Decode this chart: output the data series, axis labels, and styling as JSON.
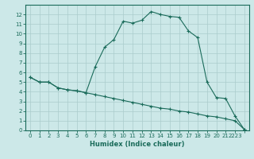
{
  "title": "",
  "xlabel": "Humidex (Indice chaleur)",
  "ylabel": "",
  "background_color": "#cce8e8",
  "line_color": "#1a6b5a",
  "xlim": [
    -0.5,
    23.5
  ],
  "ylim": [
    0,
    13
  ],
  "series1_x": [
    0,
    1,
    2,
    3,
    4,
    5,
    6,
    7,
    8,
    9,
    10,
    11,
    12,
    13,
    14,
    15,
    16,
    17,
    18,
    19,
    20,
    21,
    22,
    23
  ],
  "series1_y": [
    5.5,
    5.0,
    5.0,
    4.4,
    4.2,
    4.1,
    3.9,
    6.6,
    8.6,
    9.4,
    11.3,
    11.1,
    11.4,
    12.3,
    12.0,
    11.8,
    11.7,
    10.3,
    9.6,
    5.0,
    3.4,
    3.3,
    1.5,
    0.1
  ],
  "series2_x": [
    0,
    1,
    2,
    3,
    4,
    5,
    6,
    7,
    8,
    9,
    10,
    11,
    12,
    13,
    14,
    15,
    16,
    17,
    18,
    19,
    20,
    21,
    22,
    23
  ],
  "series2_y": [
    5.5,
    5.0,
    5.0,
    4.4,
    4.2,
    4.1,
    3.9,
    3.7,
    3.5,
    3.3,
    3.1,
    2.9,
    2.7,
    2.5,
    2.3,
    2.2,
    2.0,
    1.9,
    1.7,
    1.5,
    1.4,
    1.2,
    1.0,
    0.1
  ],
  "ytick_values": [
    0,
    1,
    2,
    3,
    4,
    5,
    6,
    7,
    8,
    9,
    10,
    11,
    12
  ],
  "grid_color": "#aacccc",
  "marker": "+"
}
